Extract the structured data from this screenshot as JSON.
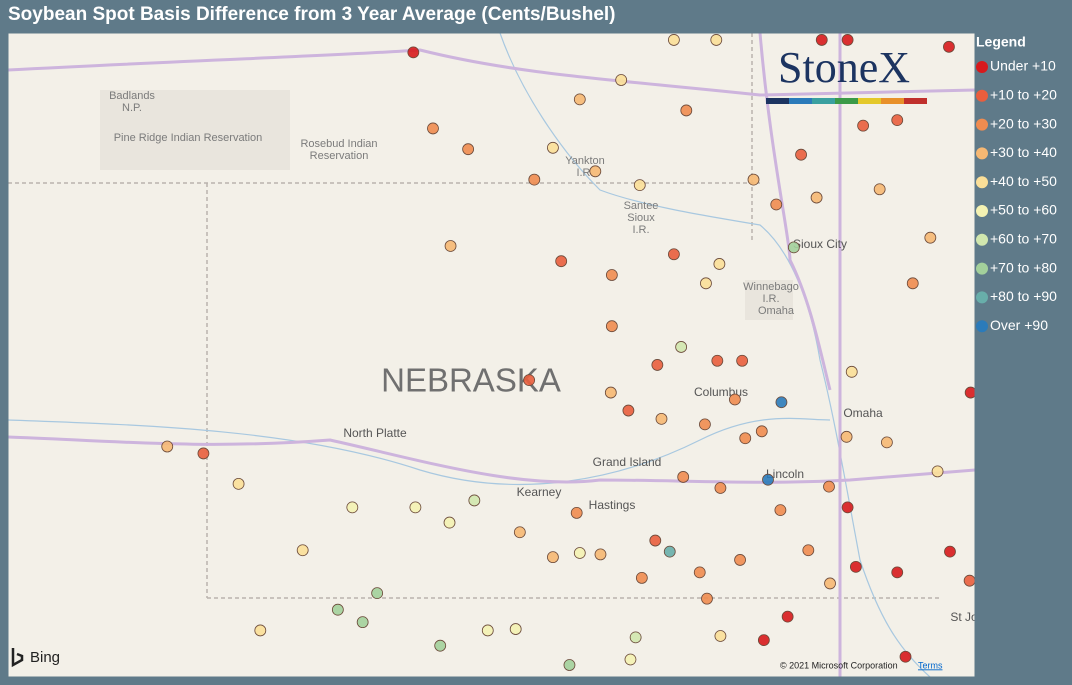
{
  "title": "Soybean Spot Basis Difference from 3 Year Average (Cents/Bushel)",
  "legend": {
    "title": "Legend",
    "items": [
      {
        "name": "Under +10",
        "color": "#d7191c"
      },
      {
        "name": "+10 to +20",
        "color": "#e95e3d"
      },
      {
        "name": "+20 to +30",
        "color": "#f08c50"
      },
      {
        "name": "+30 to +40",
        "color": "#f6b873"
      },
      {
        "name": "+40 to +50",
        "color": "#fbdf98"
      },
      {
        "name": "+50 to +60",
        "color": "#f4f2b2"
      },
      {
        "name": "+60 to +70",
        "color": "#d1e7ae"
      },
      {
        "name": "+70 to +80",
        "color": "#a3d09b"
      },
      {
        "name": "+80 to +90",
        "color": "#68aeaa"
      },
      {
        "name": "Over +90",
        "color": "#2b7bba"
      }
    ]
  },
  "logo": "StoneX",
  "map_labels": [
    "Badlands",
    "N.P.",
    "Pine Ridge Indian Reservation",
    "Rosebud Indian",
    "Reservation",
    "Yankton",
    "I.R.",
    "Santee",
    "Sioux",
    "I.R.",
    "Sioux City",
    "Winnebago",
    "I.R.",
    "Omaha",
    "NEBRASKA",
    "North Platte",
    "Columbus",
    "Omaha",
    "Grand Island",
    "Lincoln",
    "Kearney",
    "Hastings",
    "St Jo"
  ],
  "attribution": {
    "brand": "Bing",
    "copyright": "© 2021 Microsoft Corporation",
    "terms": "Terms"
  },
  "points": [
    {
      "lon": -100.08,
      "lat": 43.95,
      "bin": 0
    },
    {
      "lon": -99.89,
      "lat": 43.4,
      "bin": 2
    },
    {
      "lon": -99.55,
      "lat": 43.25,
      "bin": 2
    },
    {
      "lon": -98.91,
      "lat": 43.03,
      "bin": 2
    },
    {
      "lon": -99.72,
      "lat": 42.55,
      "bin": 3
    },
    {
      "lon": -98.65,
      "lat": 42.44,
      "bin": 1
    },
    {
      "lon": -98.16,
      "lat": 42.34,
      "bin": 2
    },
    {
      "lon": -97.56,
      "lat": 42.49,
      "bin": 1
    },
    {
      "lon": -97.12,
      "lat": 42.42,
      "bin": 4
    },
    {
      "lon": -98.96,
      "lat": 41.58,
      "bin": 1
    },
    {
      "lon": -97.72,
      "lat": 41.69,
      "bin": 1
    },
    {
      "lon": -97.49,
      "lat": 41.82,
      "bin": 6
    },
    {
      "lon": -98.0,
      "lat": 41.36,
      "bin": 1
    },
    {
      "lon": -102.11,
      "lat": 41.05,
      "bin": 1
    },
    {
      "lon": -102.46,
      "lat": 41.1,
      "bin": 3
    },
    {
      "lon": -101.77,
      "lat": 40.83,
      "bin": 4
    },
    {
      "lon": -101.15,
      "lat": 40.35,
      "bin": 4
    },
    {
      "lon": -100.06,
      "lat": 40.66,
      "bin": 5
    },
    {
      "lon": -100.43,
      "lat": 40.04,
      "bin": 7
    },
    {
      "lon": -100.81,
      "lat": 39.92,
      "bin": 7
    },
    {
      "lon": -100.57,
      "lat": 39.83,
      "bin": 7
    },
    {
      "lon": -101.56,
      "lat": 39.77,
      "bin": 4
    },
    {
      "lon": -99.49,
      "lat": 40.71,
      "bin": 6
    },
    {
      "lon": -97.6,
      "lat": 40.34,
      "bin": 8
    },
    {
      "lon": -97.74,
      "lat": 40.42,
      "bin": 1
    },
    {
      "lon": -96.52,
      "lat": 41.42,
      "bin": 9
    },
    {
      "lon": -96.65,
      "lat": 40.86,
      "bin": 9
    },
    {
      "lon": -96.46,
      "lat": 39.87,
      "bin": 0
    },
    {
      "lon": -96.69,
      "lat": 39.7,
      "bin": 0
    },
    {
      "lon": -95.8,
      "lat": 40.23,
      "bin": 0
    },
    {
      "lon": -95.88,
      "lat": 40.66,
      "bin": 0
    },
    {
      "lon": -95.4,
      "lat": 40.19,
      "bin": 0
    },
    {
      "lon": -95.32,
      "lat": 39.58,
      "bin": 0
    },
    {
      "lon": -94.89,
      "lat": 40.34,
      "bin": 0
    },
    {
      "lon": -94.7,
      "lat": 40.13,
      "bin": 1
    },
    {
      "lon": -94.69,
      "lat": 41.49,
      "bin": 0
    },
    {
      "lon": -96.13,
      "lat": 44.04,
      "bin": 0
    },
    {
      "lon": -95.88,
      "lat": 44.04,
      "bin": 0
    },
    {
      "lon": -94.9,
      "lat": 43.99,
      "bin": 0
    },
    {
      "lon": -96.4,
      "lat": 42.54,
      "bin": 7
    },
    {
      "lon": -96.18,
      "lat": 42.9,
      "bin": 3
    },
    {
      "lon": -96.33,
      "lat": 43.21,
      "bin": 1
    },
    {
      "lon": -95.73,
      "lat": 43.42,
      "bin": 1
    },
    {
      "lon": -95.4,
      "lat": 43.46,
      "bin": 1
    },
    {
      "lon": -95.57,
      "lat": 42.96,
      "bin": 3
    },
    {
      "lon": -95.25,
      "lat": 42.28,
      "bin": 2
    },
    {
      "lon": -95.08,
      "lat": 42.61,
      "bin": 3
    },
    {
      "lon": -95.84,
      "lat": 41.64,
      "bin": 4
    },
    {
      "lon": -95.5,
      "lat": 41.13,
      "bin": 3
    },
    {
      "lon": -95.01,
      "lat": 40.92,
      "bin": 4
    },
    {
      "lon": -97.14,
      "lat": 41.72,
      "bin": 1
    },
    {
      "lon": -96.9,
      "lat": 41.72,
      "bin": 1
    },
    {
      "lon": -96.97,
      "lat": 41.44,
      "bin": 2
    },
    {
      "lon": -97.26,
      "lat": 41.26,
      "bin": 2
    },
    {
      "lon": -96.87,
      "lat": 41.16,
      "bin": 2
    },
    {
      "lon": -97.11,
      "lat": 40.8,
      "bin": 2
    },
    {
      "lon": -96.53,
      "lat": 40.64,
      "bin": 2
    },
    {
      "lon": -96.26,
      "lat": 40.35,
      "bin": 2
    },
    {
      "lon": -96.92,
      "lat": 40.28,
      "bin": 2
    },
    {
      "lon": -97.24,
      "lat": 40.0,
      "bin": 2
    },
    {
      "lon": -97.87,
      "lat": 40.15,
      "bin": 2
    },
    {
      "lon": -98.5,
      "lat": 40.62,
      "bin": 2
    },
    {
      "lon": -98.27,
      "lat": 40.32,
      "bin": 3
    },
    {
      "lon": -98.73,
      "lat": 40.3,
      "bin": 3
    },
    {
      "lon": -99.05,
      "lat": 40.48,
      "bin": 3
    },
    {
      "lon": -98.47,
      "lat": 40.33,
      "bin": 5
    },
    {
      "lon": -99.36,
      "lat": 39.77,
      "bin": 5
    },
    {
      "lon": -99.09,
      "lat": 39.78,
      "bin": 5
    },
    {
      "lon": -98.57,
      "lat": 39.52,
      "bin": 7
    },
    {
      "lon": -97.98,
      "lat": 39.56,
      "bin": 5
    },
    {
      "lon": -97.11,
      "lat": 39.73,
      "bin": 4
    },
    {
      "lon": -97.56,
      "lat": 44.04,
      "bin": 4
    },
    {
      "lon": -97.15,
      "lat": 44.04,
      "bin": 4
    },
    {
      "lon": -98.07,
      "lat": 43.75,
      "bin": 4
    },
    {
      "lon": -98.47,
      "lat": 43.61,
      "bin": 3
    },
    {
      "lon": -98.73,
      "lat": 43.26,
      "bin": 4
    },
    {
      "lon": -98.32,
      "lat": 43.09,
      "bin": 3
    },
    {
      "lon": -97.89,
      "lat": 42.99,
      "bin": 4
    },
    {
      "lon": -97.44,
      "lat": 43.53,
      "bin": 2
    },
    {
      "lon": -96.79,
      "lat": 43.03,
      "bin": 3
    },
    {
      "lon": -96.57,
      "lat": 42.85,
      "bin": 2
    },
    {
      "lon": -97.25,
      "lat": 42.28,
      "bin": 4
    },
    {
      "lon": -98.16,
      "lat": 41.97,
      "bin": 2
    },
    {
      "lon": -97.68,
      "lat": 41.3,
      "bin": 3
    },
    {
      "lon": -98.17,
      "lat": 41.49,
      "bin": 3
    },
    {
      "lon": -100.67,
      "lat": 40.66,
      "bin": 5
    },
    {
      "lon": -99.73,
      "lat": 40.55,
      "bin": 5
    },
    {
      "lon": -99.82,
      "lat": 39.66,
      "bin": 7
    },
    {
      "lon": -97.93,
      "lat": 39.72,
      "bin": 6
    },
    {
      "lon": -97.31,
      "lat": 40.19,
      "bin": 2
    },
    {
      "lon": -96.05,
      "lat": 40.11,
      "bin": 3
    },
    {
      "lon": -95.89,
      "lat": 41.17,
      "bin": 3
    },
    {
      "lon": -96.06,
      "lat": 40.81,
      "bin": 2
    },
    {
      "lon": -96.71,
      "lat": 41.21,
      "bin": 2
    },
    {
      "lon": -97.47,
      "lat": 40.88,
      "bin": 2
    }
  ]
}
